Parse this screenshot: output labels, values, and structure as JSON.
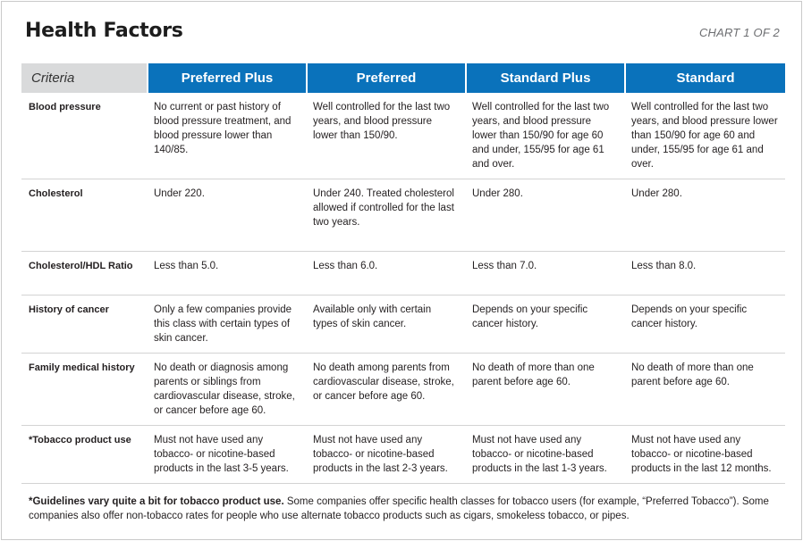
{
  "header": {
    "title": "Health Factors",
    "chart_label": "CHART 1 OF 2"
  },
  "table": {
    "columns": [
      "Criteria",
      "Preferred Plus",
      "Preferred",
      "Standard Plus",
      "Standard"
    ],
    "rows": [
      {
        "label": "Blood pressure",
        "cells": [
          "No current or past history of blood pressure treatment, and blood pressure lower than 140/85.",
          "Well controlled for the last two years, and blood pressure lower than 150/90.",
          "Well controlled for the last two years, and blood pressure lower than 150/90 for age 60 and under, 155/95 for age 61 and over.",
          "Well controlled for the last two years, and blood pressure lower than 150/90 for age 60 and under, 155/95 for age 61 and over."
        ]
      },
      {
        "label": "Cholesterol",
        "cells": [
          "Under 220.",
          "Under 240. Treated cholesterol allowed if controlled for the last two years.",
          "Under 280.",
          "Under 280."
        ]
      },
      {
        "label": "Cholesterol/HDL Ratio",
        "cells": [
          "Less than 5.0.",
          "Less than 6.0.",
          "Less than 7.0.",
          "Less than 8.0."
        ]
      },
      {
        "label": "History of cancer",
        "cells": [
          "Only a few companies provide this class with certain types of skin cancer.",
          "Available only with certain types of skin cancer.",
          "Depends on your specific cancer history.",
          "Depends on your specific cancer history."
        ]
      },
      {
        "label": "Family medical history",
        "cells": [
          "No death or diagnosis among parents or siblings from cardiovascular disease, stroke, or cancer before age 60.",
          "No death among parents from cardiovascular disease, stroke, or cancer before age 60.",
          "No death of more than one parent before age 60.",
          "No death of more than one parent before age 60."
        ]
      },
      {
        "label": "*Tobacco product use",
        "cells": [
          "Must not have used any tobacco- or nicotine-based products in the last 3-5 years.",
          "Must not have used any tobacco- or nicotine-based products in the last 2-3 years.",
          "Must not have used any tobacco- or nicotine-based products in the last 1-3 years.",
          "Must not have used any tobacco- or nicotine-based products in the last 12 months."
        ]
      }
    ]
  },
  "footnote": {
    "bold": "*Guidelines vary quite a bit for tobacco product use.",
    "text": " Some companies offer specific health classes for tobacco users (for example, “Preferred Tobacco”). Some companies also offer non-tobacco rates for people who use alternate tobacco products such as cigars, smokeless tobacco, or pipes."
  }
}
